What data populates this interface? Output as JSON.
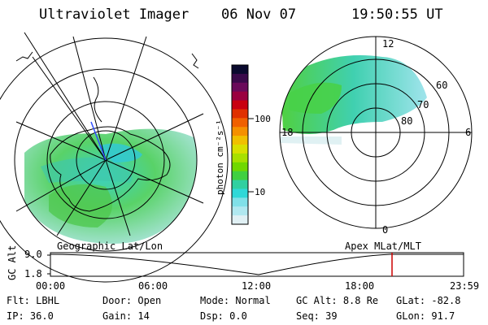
{
  "header": {
    "title": "Ultraviolet Imager",
    "date": "06 Nov 07",
    "time": "19:50:55 UT"
  },
  "map_labels": {
    "left": "Geographic Lat/Lon",
    "right": "Apex MLat/MLT"
  },
  "mlt_labels": {
    "top": "12",
    "left": "18",
    "right": "6",
    "bottom": "0"
  },
  "mlat_labels": [
    "60",
    "70",
    "80"
  ],
  "colorbar": {
    "unit": "photon cm⁻²s⁻¹",
    "ticks": [
      "100",
      "10"
    ],
    "colors": [
      "#0a0a2e",
      "#3a0a4a",
      "#6a0a5a",
      "#9a0040",
      "#c80010",
      "#e03000",
      "#f06000",
      "#f59000",
      "#f0c000",
      "#d8e000",
      "#a8e000",
      "#70d800",
      "#40d040",
      "#30d0a0",
      "#30d8d8",
      "#80e0e8",
      "#b0e8f0",
      "#e0f0f4"
    ]
  },
  "timeline": {
    "y_label": "GC Alt",
    "y_max": "9.0",
    "y_min": "1.8",
    "x_ticks": [
      "00:00",
      "06:00",
      "12:00",
      "18:00",
      "23:59"
    ],
    "current_time_marker": "19:50:55",
    "marker_color": "#cc0000"
  },
  "status": {
    "row1": [
      {
        "label": "Flt:",
        "value": "LBHL"
      },
      {
        "label": "Door:",
        "value": "Open"
      },
      {
        "label": "Mode:",
        "value": "Normal"
      },
      {
        "label": "GC Alt:",
        "value": "8.8 Re"
      },
      {
        "label": "GLat:",
        "value": "-82.8"
      }
    ],
    "row2": [
      {
        "label": "IP:",
        "value": "36.0"
      },
      {
        "label": "Gain:",
        "value": "14"
      },
      {
        "label": "Dsp:",
        "value": "0.0"
      },
      {
        "label": "Seq:",
        "value": "39"
      },
      {
        "label": "GLon:",
        "value": "91.7"
      }
    ]
  }
}
